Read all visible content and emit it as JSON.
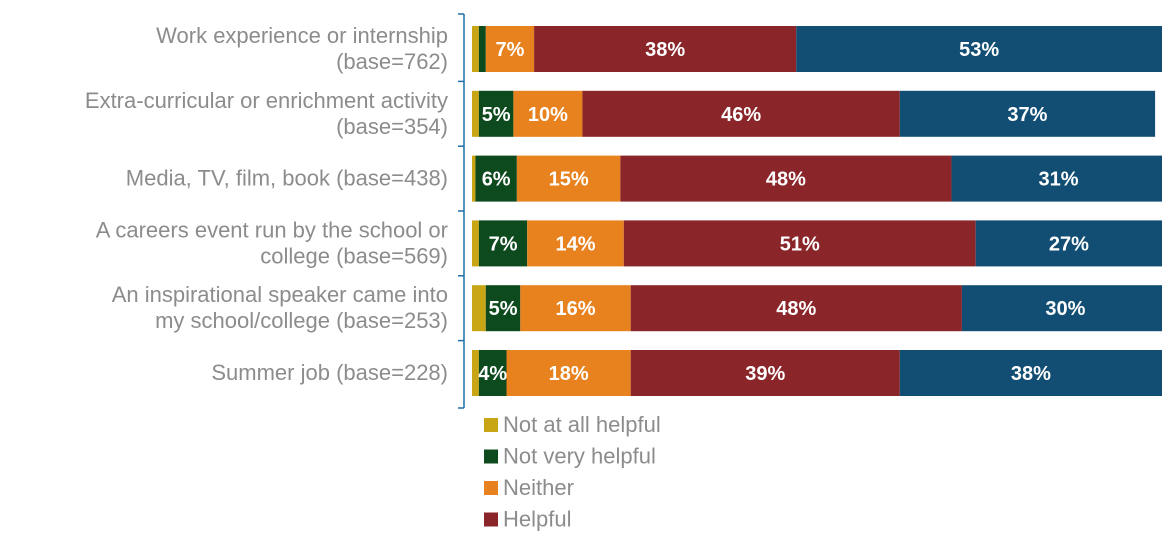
{
  "chart_data": {
    "type": "bar",
    "orientation": "horizontal",
    "stacked": true,
    "categories": [
      [
        "Work experience or internship",
        "(base=762)"
      ],
      [
        "Extra-curricular or enrichment activity",
        "(base=354)"
      ],
      [
        "Media, TV, film, book (base=438)"
      ],
      [
        "A careers event run by the school or",
        "college (base=569)"
      ],
      [
        "An inspirational speaker came into",
        "my school/college (base=253)"
      ],
      [
        "Summer job (base=228)"
      ]
    ],
    "series": [
      {
        "name": "Not at all helpful",
        "color": "#c8a514",
        "values": [
          1,
          1,
          0.5,
          1,
          2,
          1
        ],
        "labels": [
          "",
          "",
          "",
          "",
          "",
          ""
        ]
      },
      {
        "name": "Not very helpful",
        "color": "#0d4a1e",
        "values": [
          1,
          5,
          6,
          7,
          5,
          4
        ],
        "labels": [
          "",
          "5%",
          "6%",
          "7%",
          "5%",
          "4%"
        ]
      },
      {
        "name": "Neither",
        "color": "#e8821e",
        "values": [
          7,
          10,
          15,
          14,
          16,
          18
        ],
        "labels": [
          "7%",
          "10%",
          "15%",
          "14%",
          "16%",
          "18%"
        ]
      },
      {
        "name": "Helpful",
        "color": "#8a2529",
        "values": [
          38,
          46,
          48,
          51,
          48,
          39
        ],
        "labels": [
          "38%",
          "46%",
          "48%",
          "51%",
          "48%",
          "39%"
        ]
      },
      {
        "name": "",
        "color": "#124e74",
        "values": [
          53,
          37,
          31,
          27,
          30,
          38
        ],
        "labels": [
          "53%",
          "37%",
          "31%",
          "27%",
          "30%",
          "38%"
        ]
      }
    ],
    "xlim": [
      0,
      100
    ],
    "legend_position": "bottom",
    "grid": false
  }
}
